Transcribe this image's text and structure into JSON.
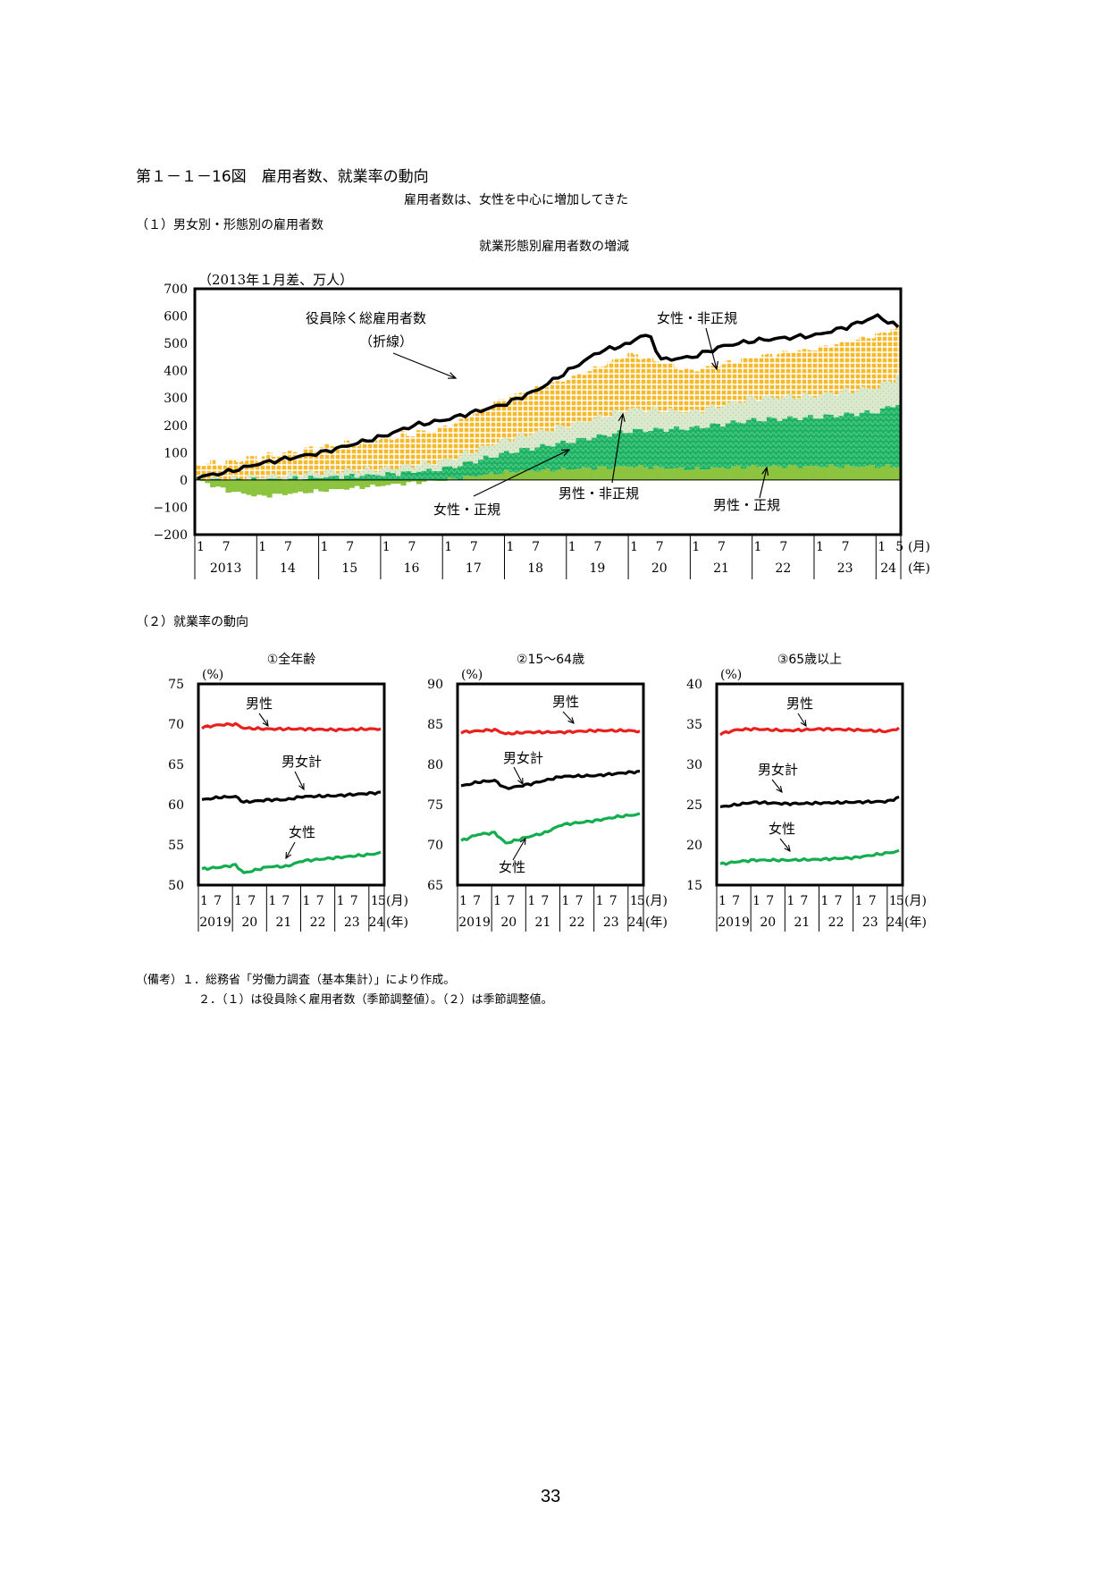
{
  "header": {
    "title": "第１－１－16図　雇用者数、就業率の動向",
    "subtitle": "雇用者数は、女性を中心に増加してきた",
    "section1": "（１）男女別・形態別の雇用者数",
    "section2": "（２）就業率の動向"
  },
  "notes": {
    "line1": "（備考）１．総務省「労働力調査（基本集計）」により作成。",
    "line2": "２．（１）は役員除く雇用者数（季節調整値）。（２）は季節調整値。"
  },
  "page_number": "33",
  "colors": {
    "female_nonregular": "#f6b92c",
    "male_nonregular": "#dbe9cf",
    "female_regular": "#1fb164",
    "male_regular": "#8cc43f",
    "total_line": "#000000",
    "rate_male": "#e8211f",
    "rate_total": "#000000",
    "rate_female": "#12ad4f"
  },
  "chart_data": [
    {
      "type": "area",
      "title": "就業形態別雇用者数の増減",
      "unit_label": "（2013年１月差、万人）",
      "ylim": [
        -200,
        700
      ],
      "yticks": [
        -200,
        -100,
        0,
        100,
        200,
        300,
        400,
        500,
        600,
        700
      ],
      "x_month_label": "(月)",
      "x_year_label": "(年)",
      "years": [
        "2013",
        "14",
        "15",
        "16",
        "17",
        "18",
        "19",
        "20",
        "21",
        "22",
        "23",
        "24"
      ],
      "month_ticks": [
        "1",
        "7"
      ],
      "last_month_tick": "5",
      "period": "2013-01 to 2024-05 (monthly)",
      "series_keypoints": [
        {
          "name": "男性・正規",
          "points": [
            [
              0,
              0
            ],
            [
              6,
              -40
            ],
            [
              12,
              -60
            ],
            [
              24,
              -40
            ],
            [
              36,
              -20
            ],
            [
              48,
              0
            ],
            [
              60,
              30
            ],
            [
              72,
              40
            ],
            [
              84,
              50
            ],
            [
              96,
              40
            ],
            [
              108,
              50
            ],
            [
              120,
              50
            ],
            [
              132,
              50
            ],
            [
              136,
              50
            ]
          ]
        },
        {
          "name": "女性・正規",
          "points": [
            [
              0,
              0
            ],
            [
              12,
              0
            ],
            [
              24,
              10
            ],
            [
              36,
              20
            ],
            [
              48,
              40
            ],
            [
              60,
              70
            ],
            [
              72,
              100
            ],
            [
              84,
              130
            ],
            [
              96,
              150
            ],
            [
              108,
              170
            ],
            [
              120,
              180
            ],
            [
              132,
              200
            ],
            [
              136,
              230
            ]
          ]
        },
        {
          "name": "男性・非正規",
          "points": [
            [
              0,
              0
            ],
            [
              12,
              10
            ],
            [
              24,
              20
            ],
            [
              36,
              20
            ],
            [
              48,
              30
            ],
            [
              60,
              50
            ],
            [
              72,
              60
            ],
            [
              84,
              80
            ],
            [
              96,
              60
            ],
            [
              108,
              80
            ],
            [
              120,
              80
            ],
            [
              132,
              90
            ],
            [
              136,
              100
            ]
          ]
        },
        {
          "name": "女性・非正規",
          "points": [
            [
              0,
              50
            ],
            [
              12,
              70
            ],
            [
              24,
              90
            ],
            [
              36,
              110
            ],
            [
              48,
              120
            ],
            [
              60,
              150
            ],
            [
              72,
              170
            ],
            [
              84,
              200
            ],
            [
              96,
              150
            ],
            [
              108,
              150
            ],
            [
              120,
              170
            ],
            [
              132,
              190
            ],
            [
              136,
              180
            ]
          ]
        }
      ],
      "line": {
        "name": "役員除く総雇用者数",
        "name_note": "（折線）",
        "points": [
          [
            0,
            10
          ],
          [
            6,
            30
          ],
          [
            12,
            60
          ],
          [
            18,
            80
          ],
          [
            24,
            100
          ],
          [
            30,
            130
          ],
          [
            36,
            160
          ],
          [
            42,
            200
          ],
          [
            48,
            220
          ],
          [
            54,
            250
          ],
          [
            60,
            280
          ],
          [
            66,
            330
          ],
          [
            72,
            400
          ],
          [
            78,
            470
          ],
          [
            84,
            500
          ],
          [
            86,
            530
          ],
          [
            88,
            520
          ],
          [
            90,
            440
          ],
          [
            96,
            450
          ],
          [
            102,
            490
          ],
          [
            108,
            510
          ],
          [
            114,
            520
          ],
          [
            120,
            530
          ],
          [
            126,
            560
          ],
          [
            132,
            600
          ],
          [
            136,
            560
          ]
        ]
      },
      "annotations": [
        "役員除く総雇用者数",
        "（折線）",
        "女性・非正規",
        "女性・正規",
        "男性・非正規",
        "男性・正規"
      ]
    },
    {
      "type": "line",
      "title": "①全年齢",
      "unit_label": "(%)",
      "ylim": [
        50,
        75
      ],
      "yticks": [
        50,
        55,
        60,
        65,
        70,
        75
      ],
      "years": [
        "2019",
        "20",
        "21",
        "22",
        "23",
        "24"
      ],
      "month_ticks": [
        "1",
        "7"
      ],
      "last_month_tick": "5",
      "x_month_label": "(月)",
      "x_year_label": "(年)",
      "series": [
        {
          "name": "男性",
          "points": [
            [
              0,
              69.6
            ],
            [
              6,
              69.9
            ],
            [
              12,
              70.0
            ],
            [
              15,
              69.5
            ],
            [
              24,
              69.4
            ],
            [
              36,
              69.4
            ],
            [
              48,
              69.3
            ],
            [
              60,
              69.4
            ],
            [
              64,
              69.4
            ]
          ]
        },
        {
          "name": "男女計",
          "points": [
            [
              0,
              60.6
            ],
            [
              6,
              60.9
            ],
            [
              12,
              61.0
            ],
            [
              15,
              60.3
            ],
            [
              24,
              60.6
            ],
            [
              30,
              60.6
            ],
            [
              36,
              61.0
            ],
            [
              48,
              61.1
            ],
            [
              60,
              61.4
            ],
            [
              64,
              61.5
            ]
          ]
        },
        {
          "name": "女性",
          "points": [
            [
              0,
              52.0
            ],
            [
              6,
              52.2
            ],
            [
              12,
              52.5
            ],
            [
              15,
              51.5
            ],
            [
              24,
              52.3
            ],
            [
              30,
              52.3
            ],
            [
              36,
              53.0
            ],
            [
              48,
              53.4
            ],
            [
              60,
              53.8
            ],
            [
              64,
              54.0
            ]
          ]
        }
      ]
    },
    {
      "type": "line",
      "title": "②15～64歳",
      "unit_label": "(%)",
      "ylim": [
        65,
        90
      ],
      "yticks": [
        65,
        70,
        75,
        80,
        85,
        90
      ],
      "years": [
        "2019",
        "20",
        "21",
        "22",
        "23",
        "24"
      ],
      "month_ticks": [
        "1",
        "7"
      ],
      "last_month_tick": "5",
      "x_month_label": "(月)",
      "x_year_label": "(年)",
      "series": [
        {
          "name": "男性",
          "points": [
            [
              0,
              84.0
            ],
            [
              12,
              84.3
            ],
            [
              16,
              83.8
            ],
            [
              24,
              84.0
            ],
            [
              36,
              84.0
            ],
            [
              48,
              84.2
            ],
            [
              60,
              84.2
            ],
            [
              64,
              84.1
            ]
          ]
        },
        {
          "name": "男女計",
          "points": [
            [
              0,
              77.3
            ],
            [
              6,
              77.8
            ],
            [
              12,
              78.0
            ],
            [
              16,
              77.0
            ],
            [
              24,
              77.5
            ],
            [
              36,
              78.5
            ],
            [
              48,
              78.6
            ],
            [
              60,
              79.0
            ],
            [
              64,
              79.1
            ]
          ]
        },
        {
          "name": "女性",
          "points": [
            [
              0,
              70.5
            ],
            [
              6,
              71.3
            ],
            [
              12,
              71.5
            ],
            [
              16,
              70.2
            ],
            [
              24,
              71.0
            ],
            [
              30,
              71.5
            ],
            [
              36,
              72.5
            ],
            [
              48,
              73.0
            ],
            [
              56,
              73.5
            ],
            [
              64,
              73.8
            ]
          ]
        }
      ]
    },
    {
      "type": "line",
      "title": "③65歳以上",
      "unit_label": "(%)",
      "ylim": [
        15,
        40
      ],
      "yticks": [
        15,
        20,
        25,
        30,
        35,
        40
      ],
      "years": [
        "2019",
        "20",
        "21",
        "22",
        "23",
        "24"
      ],
      "month_ticks": [
        "1",
        "7"
      ],
      "last_month_tick": "5",
      "x_month_label": "(月)",
      "x_year_label": "(年)",
      "series": [
        {
          "name": "男性",
          "points": [
            [
              0,
              33.8
            ],
            [
              6,
              34.3
            ],
            [
              12,
              34.4
            ],
            [
              24,
              34.2
            ],
            [
              36,
              34.4
            ],
            [
              48,
              34.3
            ],
            [
              60,
              34.1
            ],
            [
              64,
              34.5
            ]
          ]
        },
        {
          "name": "男女計",
          "points": [
            [
              0,
              24.7
            ],
            [
              6,
              25.0
            ],
            [
              12,
              25.3
            ],
            [
              24,
              25.1
            ],
            [
              36,
              25.2
            ],
            [
              48,
              25.3
            ],
            [
              60,
              25.4
            ],
            [
              64,
              25.9
            ]
          ]
        },
        {
          "name": "女性",
          "points": [
            [
              0,
              17.6
            ],
            [
              6,
              17.9
            ],
            [
              12,
              18.1
            ],
            [
              24,
              18.1
            ],
            [
              36,
              18.2
            ],
            [
              48,
              18.4
            ],
            [
              60,
              19.0
            ],
            [
              64,
              19.2
            ]
          ]
        }
      ]
    }
  ]
}
